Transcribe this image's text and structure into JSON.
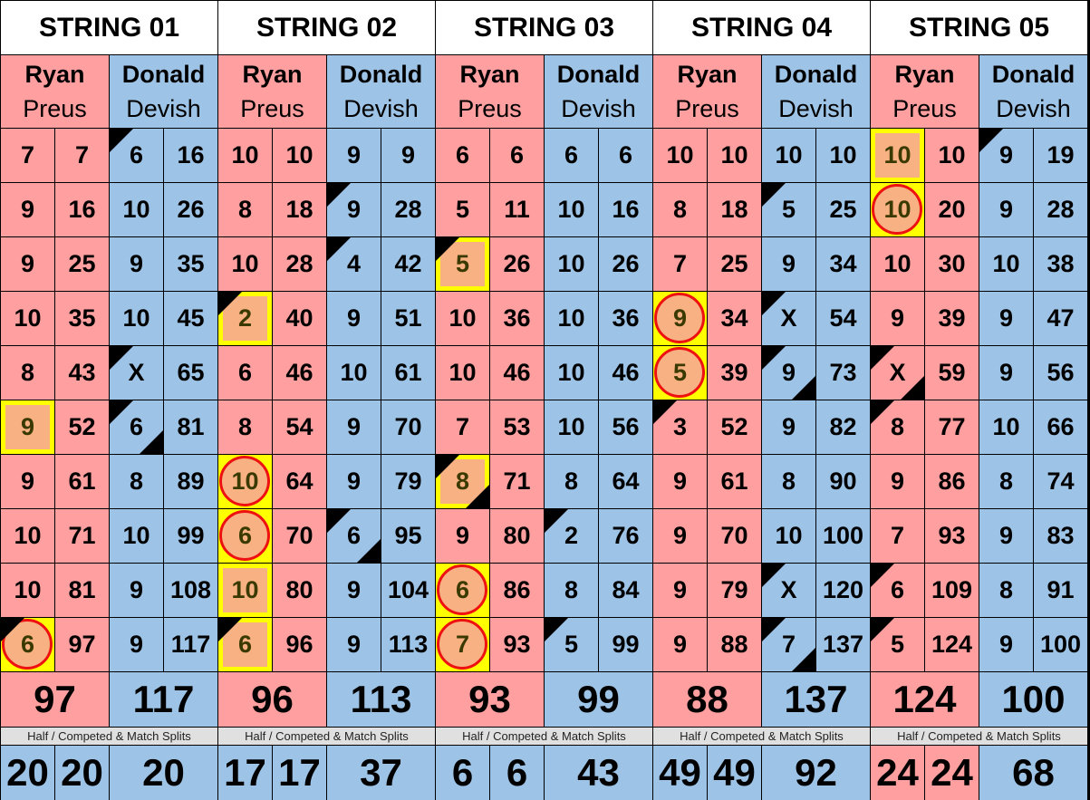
{
  "colors": {
    "ryan": "#FF9F9F",
    "donald": "#9DC3E6",
    "highlight_border": "#FFFF00",
    "highlight_fill": "#F8B183",
    "circle": "#EE1111"
  },
  "split_label": "Half / Competed & Match Splits",
  "strings": [
    {
      "title": "STRING 01",
      "players": [
        {
          "first": "Ryan",
          "last": "Preus"
        },
        {
          "first": "Donald",
          "last": "Devish"
        }
      ],
      "rows": [
        [
          "7",
          "7",
          "6",
          "16"
        ],
        [
          "9",
          "16",
          "10",
          "26"
        ],
        [
          "9",
          "25",
          "9",
          "35"
        ],
        [
          "10",
          "35",
          "10",
          "45"
        ],
        [
          "8",
          "43",
          "X",
          "65"
        ],
        [
          "9",
          "52",
          "6",
          "81"
        ],
        [
          "9",
          "61",
          "8",
          "89"
        ],
        [
          "10",
          "71",
          "10",
          "99"
        ],
        [
          "10",
          "81",
          "9",
          "108"
        ],
        [
          "6",
          "97",
          "9",
          "117"
        ]
      ],
      "marks": {
        "0-2": "tl",
        "4-2": "tl",
        "5-0": "sq",
        "5-2": "tl br",
        "9-0": "circ tl"
      },
      "totals": [
        "97",
        "117"
      ],
      "splits": [
        "20",
        "20",
        "20"
      ],
      "split_colors": [
        "blue",
        "blue",
        "blue"
      ]
    },
    {
      "title": "STRING 02",
      "players": [
        {
          "first": "Ryan",
          "last": "Preus"
        },
        {
          "first": "Donald",
          "last": "Devish"
        }
      ],
      "rows": [
        [
          "10",
          "10",
          "9",
          "9"
        ],
        [
          "8",
          "18",
          "9",
          "28"
        ],
        [
          "10",
          "28",
          "4",
          "42"
        ],
        [
          "2",
          "40",
          "9",
          "51"
        ],
        [
          "6",
          "46",
          "10",
          "61"
        ],
        [
          "8",
          "54",
          "9",
          "70"
        ],
        [
          "10",
          "64",
          "9",
          "79"
        ],
        [
          "6",
          "70",
          "6",
          "95"
        ],
        [
          "10",
          "80",
          "9",
          "104"
        ],
        [
          "6",
          "96",
          "9",
          "113"
        ]
      ],
      "marks": {
        "1-2": "tl",
        "2-2": "tl",
        "3-0": "sq tl",
        "6-0": "circ",
        "7-0": "circ",
        "7-2": "tl br",
        "8-0": "sq",
        "9-0": "sq tl"
      },
      "totals": [
        "96",
        "113"
      ],
      "splits": [
        "17",
        "17",
        "37"
      ],
      "split_colors": [
        "blue",
        "blue",
        "blue"
      ]
    },
    {
      "title": "STRING 03",
      "players": [
        {
          "first": "Ryan",
          "last": "Preus"
        },
        {
          "first": "Donald",
          "last": "Devish"
        }
      ],
      "rows": [
        [
          "6",
          "6",
          "6",
          "6"
        ],
        [
          "5",
          "11",
          "10",
          "16"
        ],
        [
          "5",
          "26",
          "10",
          "26"
        ],
        [
          "10",
          "36",
          "10",
          "36"
        ],
        [
          "10",
          "46",
          "10",
          "46"
        ],
        [
          "7",
          "53",
          "10",
          "56"
        ],
        [
          "8",
          "71",
          "8",
          "64"
        ],
        [
          "9",
          "80",
          "2",
          "76"
        ],
        [
          "6",
          "86",
          "8",
          "84"
        ],
        [
          "7",
          "93",
          "5",
          "99"
        ]
      ],
      "marks": {
        "2-0": "sq tl",
        "6-0": "sq tl br",
        "7-2": "tl",
        "8-0": "circ",
        "9-0": "circ",
        "9-2": "tl"
      },
      "totals": [
        "93",
        "99"
      ],
      "splits": [
        "6",
        "6",
        "43"
      ],
      "split_colors": [
        "blue",
        "blue",
        "blue"
      ]
    },
    {
      "title": "STRING 04",
      "players": [
        {
          "first": "Ryan",
          "last": "Preus"
        },
        {
          "first": "Donald",
          "last": "Devish"
        }
      ],
      "rows": [
        [
          "10",
          "10",
          "10",
          "10"
        ],
        [
          "8",
          "18",
          "5",
          "25"
        ],
        [
          "7",
          "25",
          "9",
          "34"
        ],
        [
          "9",
          "34",
          "X",
          "54"
        ],
        [
          "5",
          "39",
          "9",
          "73"
        ],
        [
          "3",
          "52",
          "9",
          "82"
        ],
        [
          "9",
          "61",
          "8",
          "90"
        ],
        [
          "9",
          "70",
          "10",
          "100"
        ],
        [
          "9",
          "79",
          "X",
          "120"
        ],
        [
          "9",
          "88",
          "7",
          "137"
        ]
      ],
      "marks": {
        "1-2": "tl",
        "3-0": "circ",
        "3-2": "tl",
        "4-0": "circ",
        "4-2": "tl br",
        "5-0": "tl",
        "8-2": "tl",
        "9-2": "tl br"
      },
      "totals": [
        "88",
        "137"
      ],
      "splits": [
        "49",
        "49",
        "92"
      ],
      "split_colors": [
        "blue",
        "blue",
        "blue"
      ]
    },
    {
      "title": "STRING 05",
      "players": [
        {
          "first": "Ryan",
          "last": "Preus"
        },
        {
          "first": "Donald",
          "last": "Devish"
        }
      ],
      "rows": [
        [
          "10",
          "10",
          "9",
          "19"
        ],
        [
          "10",
          "20",
          "9",
          "28"
        ],
        [
          "10",
          "30",
          "10",
          "38"
        ],
        [
          "9",
          "39",
          "9",
          "47"
        ],
        [
          "X",
          "59",
          "9",
          "56"
        ],
        [
          "8",
          "77",
          "10",
          "66"
        ],
        [
          "9",
          "86",
          "8",
          "74"
        ],
        [
          "7",
          "93",
          "9",
          "83"
        ],
        [
          "6",
          "109",
          "8",
          "91"
        ],
        [
          "5",
          "124",
          "9",
          "100"
        ]
      ],
      "marks": {
        "0-0": "sq",
        "0-2": "tl",
        "1-0": "circ",
        "4-0": "tl br",
        "5-0": "tl",
        "8-0": "tl",
        "9-0": "tl"
      },
      "totals": [
        "124",
        "100"
      ],
      "splits": [
        "24",
        "24",
        "68"
      ],
      "split_colors": [
        "pink",
        "pink",
        "blue"
      ]
    }
  ]
}
